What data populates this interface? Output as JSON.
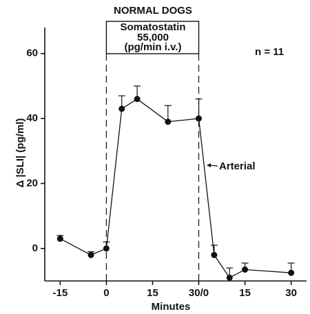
{
  "chart_data": {
    "type": "line",
    "title": "NORMAL DOGS",
    "x_label": "Minutes",
    "y_label": "Δ |SLI| (pg/ml)",
    "x": [
      -15,
      -5,
      0,
      5,
      10,
      20,
      30,
      35,
      40,
      45,
      60
    ],
    "values": [
      3,
      -2,
      0,
      43,
      46,
      39,
      40,
      -2,
      -9,
      -6.5,
      -7.5
    ],
    "errors": [
      1,
      1,
      2,
      4,
      4,
      5,
      6,
      3,
      3,
      2,
      3
    ],
    "color": "#111",
    "xlim": [
      -20,
      65
    ],
    "ylim": [
      -10,
      68
    ],
    "xticks": [
      -15,
      0,
      15,
      {
        "value": 30,
        "label": "30/0"
      },
      {
        "value": 45,
        "label": "15"
      },
      {
        "value": 60,
        "label": "30"
      }
    ],
    "yticks": [
      0,
      20,
      40,
      60
    ],
    "annotations": [
      "Somatostatin",
      "55,000",
      "(pg/min i.v.)",
      "n = 11",
      "Arterial"
    ]
  }
}
